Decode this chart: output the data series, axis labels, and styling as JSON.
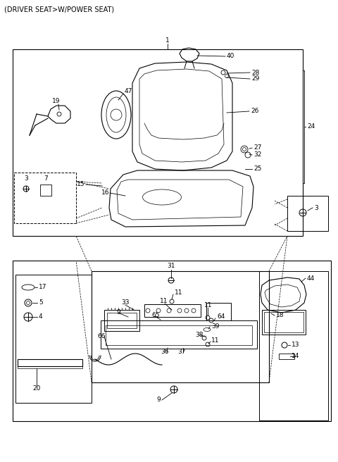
{
  "title": "(DRIVER SEAT>W/POWER SEAT)",
  "bg_color": "#ffffff",
  "title_fontsize": 7.0,
  "label_fontsize": 6.5,
  "fig_width": 4.8,
  "fig_height": 6.56
}
